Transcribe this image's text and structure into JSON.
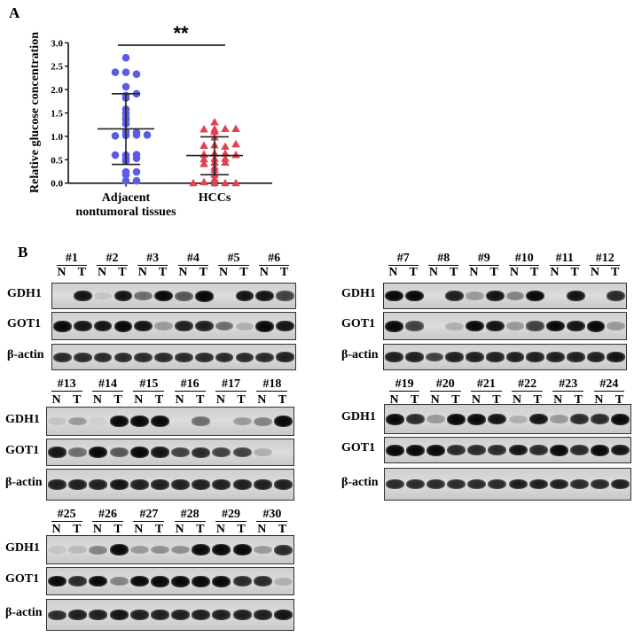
{
  "panel_a": {
    "letter": "A"
  },
  "panel_b": {
    "letter": "B"
  },
  "chart_data": {
    "type": "scatter",
    "title": "",
    "xlabel": "",
    "ylabel": "Relative glucose concentration",
    "ylim": [
      0,
      3.0
    ],
    "yticks": [
      "0.0",
      "0.5",
      "1.0",
      "1.5",
      "2.0",
      "2.5",
      "3.0"
    ],
    "categories": [
      "Adjacent nontumoral tissues",
      "HCCs"
    ],
    "category_lines": [
      [
        "Adjacent",
        "nontumoral tissues"
      ],
      [
        "HCCs"
      ]
    ],
    "significance": "**",
    "series": [
      {
        "name": "Adjacent nontumoral tissues",
        "marker": "circle",
        "color": "#5b5ce6",
        "values": [
          2.68,
          2.37,
          2.33,
          2.37,
          2.06,
          1.87,
          1.82,
          1.91,
          1.49,
          1.58,
          1.36,
          1.41,
          1.27,
          1.02,
          1.03,
          1.01,
          1.1,
          1.08,
          1.03,
          0.53,
          0.6,
          0.61,
          0.47,
          0.53,
          0.6,
          0.24,
          0.24,
          0.18,
          0.05,
          0.05
        ],
        "mean": 1.16,
        "sd_low": 0.4,
        "sd_high": 1.91
      },
      {
        "name": "HCCs",
        "marker": "triangle",
        "color": "#e4414f",
        "values": [
          1.15,
          1.16,
          1.15,
          1.1,
          1.3,
          1.16,
          0.98,
          0.81,
          0.78,
          0.8,
          0.83,
          0.63,
          0.63,
          0.52,
          0.52,
          0.44,
          0.44,
          0.41,
          0.51,
          0.34,
          0.28,
          0.18,
          0.09,
          0.0,
          0.0,
          0.02,
          0.0,
          0.0,
          0.61,
          0.6
        ],
        "mean": 0.59,
        "sd_low": 0.18,
        "sd_high": 0.99
      }
    ]
  },
  "blots": {
    "lane_labels": [
      "N",
      "T"
    ],
    "row_labels": [
      "GDH1",
      "GOT1",
      "β-actin"
    ],
    "groups": [
      {
        "samples": [
          "#1",
          "#2",
          "#3",
          "#4",
          "#5",
          "#6"
        ],
        "GDH1": [
          0,
          0.9,
          0.1,
          0.9,
          0.5,
          0.95,
          0.6,
          1,
          0,
          0.9,
          0.9,
          0.7
        ],
        "GOT1": [
          1,
          0.9,
          0.9,
          1,
          0.9,
          0.3,
          0.85,
          0.85,
          0.5,
          0.2,
          1,
          0.9
        ],
        "actin": [
          0.8,
          0.8,
          0.8,
          0.8,
          0.8,
          0.8,
          0.8,
          0.8,
          0.8,
          0.8,
          0.8,
          0.85
        ]
      },
      {
        "samples": [
          "#7",
          "#8",
          "#9",
          "#10",
          "#11",
          "#12"
        ],
        "GDH1": [
          0.95,
          0.95,
          0,
          0.85,
          0.3,
          0.9,
          0.4,
          0.95,
          0,
          0.9,
          0,
          0.8
        ],
        "GOT1": [
          1,
          0.7,
          0,
          0.2,
          0.95,
          0.9,
          0.3,
          0.7,
          0.95,
          0.9,
          1,
          0.3
        ],
        "actin": [
          0.85,
          0.85,
          0.7,
          0.85,
          0.85,
          0.85,
          0.85,
          0.85,
          0.85,
          0.85,
          0.85,
          0.9
        ]
      },
      {
        "samples": [
          "#13",
          "#14",
          "#15",
          "#16",
          "#17",
          "#18"
        ],
        "GDH1": [
          0.1,
          0.3,
          0.05,
          1,
          1,
          1,
          0,
          0.5,
          0,
          0.3,
          0.4,
          1
        ],
        "GOT1": [
          0.9,
          0.5,
          1,
          0.6,
          1,
          0.9,
          0.7,
          0.8,
          0.7,
          0.7,
          0.2,
          0
        ],
        "actin": [
          0.85,
          0.85,
          0.85,
          0.9,
          0.85,
          0.85,
          0.85,
          0.85,
          0.85,
          0.85,
          0.85,
          0.85
        ]
      },
      {
        "samples": [
          "#19",
          "#20",
          "#21",
          "#22",
          "#23",
          "#24"
        ],
        "GDH1": [
          1,
          0.8,
          0.3,
          1,
          1,
          0.9,
          0.2,
          0.9,
          0.3,
          0.8,
          0.8,
          1
        ],
        "GOT1": [
          1,
          1,
          1,
          0.8,
          0.8,
          0.8,
          0.9,
          0.8,
          1,
          0.8,
          1,
          0.9
        ],
        "actin": [
          0.8,
          0.8,
          0.8,
          0.8,
          0.8,
          0.8,
          0.85,
          0.85,
          0.85,
          0.8,
          0.8,
          0.85
        ]
      },
      {
        "samples": [
          "#25",
          "#26",
          "#27",
          "#28",
          "#29",
          "#30"
        ],
        "GDH1": [
          0.1,
          0.15,
          0.4,
          1,
          0.3,
          0.35,
          0.35,
          1,
          1,
          1,
          0.3,
          0.8
        ],
        "GOT1": [
          0.95,
          0.8,
          0.95,
          0.4,
          0.95,
          1,
          1,
          1,
          1,
          0.8,
          0.8,
          0.2
        ],
        "actin": [
          0.8,
          0.85,
          0.85,
          0.9,
          0.85,
          0.85,
          0.85,
          0.85,
          0.85,
          0.85,
          0.85,
          0.9
        ]
      }
    ]
  }
}
